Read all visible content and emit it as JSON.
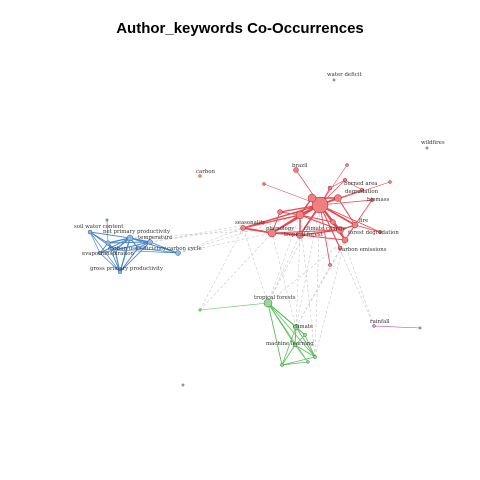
{
  "title": "Author_keywords Co-Occurrences",
  "colors": {
    "red_cluster": "#e8474f",
    "red_fill": "#f08080",
    "blue_cluster": "#4a86c8",
    "blue_fill": "#8fb8e0",
    "green_cluster": "#5cbf5c",
    "green_fill": "#9ad89a",
    "orange_isolate": "#d4703a",
    "purple_cluster": "#b04ab0",
    "inter_edge": "#bbbbbb",
    "isolate_gray": "#888888"
  },
  "nodes": [
    {
      "id": "water-deficit",
      "label": "water deficit",
      "group": "isolate"
    },
    {
      "id": "wildfires",
      "label": "wildfires",
      "group": "isolate"
    },
    {
      "id": "carbon",
      "label": "carbon",
      "group": "isolate-orange"
    },
    {
      "id": "brazil",
      "label": "brazil",
      "group": "red"
    },
    {
      "id": "burned-area",
      "label": "burned area",
      "group": "red"
    },
    {
      "id": "degradation",
      "label": "degradation",
      "group": "red"
    },
    {
      "id": "biomass",
      "label": "biomass",
      "group": "red"
    },
    {
      "id": "seasonality",
      "label": "seasonality",
      "group": "red"
    },
    {
      "id": "phenology",
      "label": "phenology",
      "group": "red"
    },
    {
      "id": "fire",
      "label": "fire",
      "group": "red"
    },
    {
      "id": "forest-degradation",
      "label": "forest degradation",
      "group": "red"
    },
    {
      "id": "carbon-emissions",
      "label": "carbon emissions",
      "group": "red"
    },
    {
      "id": "climate-change",
      "label": "climate change",
      "group": "red"
    },
    {
      "id": "tropical-forest",
      "label": "tropical forest",
      "group": "red"
    },
    {
      "id": "soil-water-content",
      "label": "soil water content",
      "group": "blue"
    },
    {
      "id": "net-primary-productivity",
      "label": "net primary productivity",
      "group": "blue"
    },
    {
      "id": "temperature",
      "label": "temperature",
      "group": "blue"
    },
    {
      "id": "carbon-use-efficiency",
      "label": "carbon use efficiency",
      "group": "blue"
    },
    {
      "id": "carbon-cycle",
      "label": "carbon cycle",
      "group": "blue"
    },
    {
      "id": "evapotranspiration",
      "label": "evapotranspiration",
      "group": "blue"
    },
    {
      "id": "gross-primary-productivity",
      "label": "gross primary productivity",
      "group": "blue"
    },
    {
      "id": "tropical-forests",
      "label": "tropical forests",
      "group": "green"
    },
    {
      "id": "climate",
      "label": "climate",
      "group": "green"
    },
    {
      "id": "machine-learning",
      "label": "machine learning",
      "group": "green"
    },
    {
      "id": "rainfall",
      "label": "rainfall",
      "group": "purple"
    }
  ]
}
